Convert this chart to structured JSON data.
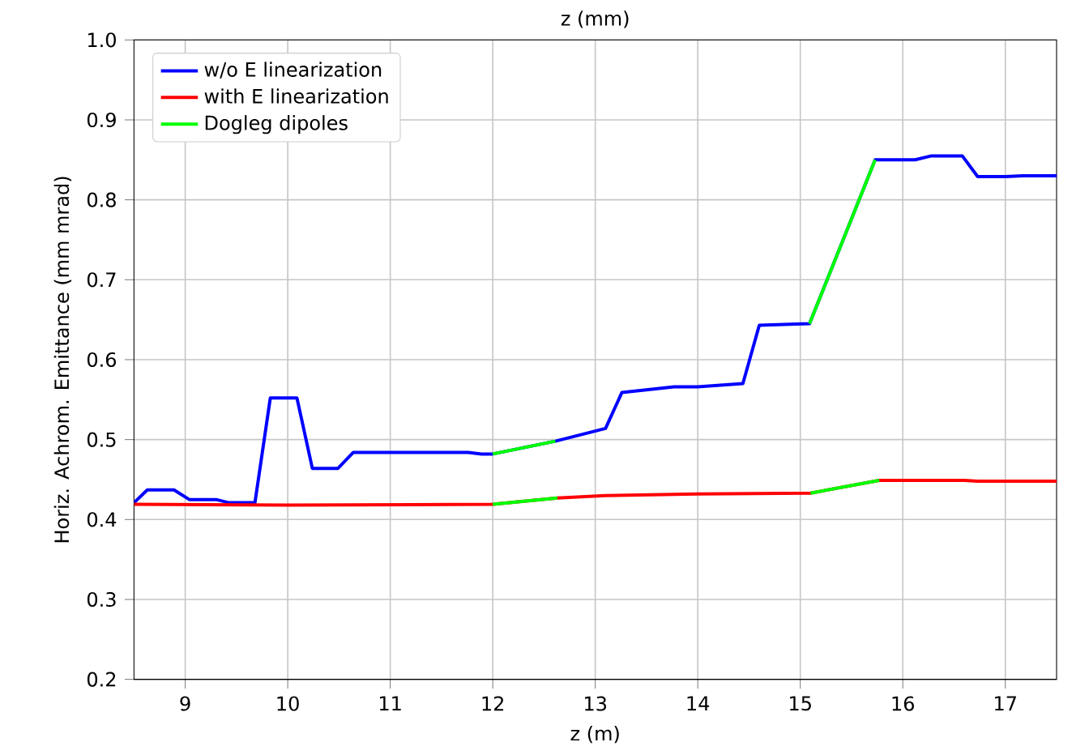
{
  "chart_data": {
    "type": "line",
    "title": "z (mm)",
    "xlabel": "z (m)",
    "ylabel": "Horiz. Achrom. Emittance (mm mrad)",
    "xlim": [
      8.5,
      17.5
    ],
    "ylim": [
      0.2,
      1.0
    ],
    "xticks": [
      9,
      10,
      11,
      12,
      13,
      14,
      15,
      16,
      17
    ],
    "yticks": [
      {
        "value": 0.2,
        "label": "0.2"
      },
      {
        "value": 0.3,
        "label": "0.3"
      },
      {
        "value": 0.4,
        "label": "0.4"
      },
      {
        "value": 0.5,
        "label": "0.5"
      },
      {
        "value": 0.6,
        "label": "0.6"
      },
      {
        "value": 0.7,
        "label": "0.7"
      },
      {
        "value": 0.8,
        "label": "0.8"
      },
      {
        "value": 0.9,
        "label": "0.9"
      },
      {
        "value": 1.0,
        "label": "1.0"
      }
    ],
    "grid": true,
    "legend": "top left",
    "marker": "none",
    "line_style": "solid",
    "series": [
      {
        "name": "w/o E linearization",
        "color": "#0000ff",
        "x": [
          8.5,
          8.63,
          8.89,
          9.04,
          9.3,
          9.43,
          9.68,
          9.83,
          10.09,
          10.24,
          10.49,
          10.64,
          11.76,
          11.89,
          12.0,
          12.61,
          13.1,
          13.26,
          13.77,
          14.0,
          14.44,
          14.6,
          15.09,
          15.73,
          16.12,
          16.28,
          16.58,
          16.73,
          17.0,
          17.17,
          17.5
        ],
        "values": [
          0.421,
          0.437,
          0.437,
          0.425,
          0.425,
          0.421,
          0.421,
          0.552,
          0.552,
          0.464,
          0.464,
          0.484,
          0.484,
          0.482,
          0.482,
          0.498,
          0.514,
          0.559,
          0.566,
          0.566,
          0.57,
          0.643,
          0.645,
          0.85,
          0.85,
          0.855,
          0.855,
          0.829,
          0.829,
          0.83,
          0.83
        ]
      },
      {
        "name": "with E linearization",
        "color": "#ff0000",
        "x": [
          8.5,
          10.0,
          12.0,
          12.63,
          13.1,
          14.0,
          15.1,
          15.77,
          16.6,
          16.73,
          17.5
        ],
        "values": [
          0.419,
          0.418,
          0.419,
          0.427,
          0.43,
          0.432,
          0.433,
          0.449,
          0.449,
          0.448,
          0.448
        ]
      },
      {
        "name": "Dogleg dipoles",
        "color": "#00ff00",
        "x": [
          12.0,
          12.61,
          null,
          15.09,
          15.73,
          null,
          12.0,
          12.63,
          null,
          15.1,
          15.77
        ],
        "values": [
          0.482,
          0.498,
          null,
          0.645,
          0.85,
          null,
          0.419,
          0.427,
          null,
          0.433,
          0.449
        ]
      }
    ]
  }
}
